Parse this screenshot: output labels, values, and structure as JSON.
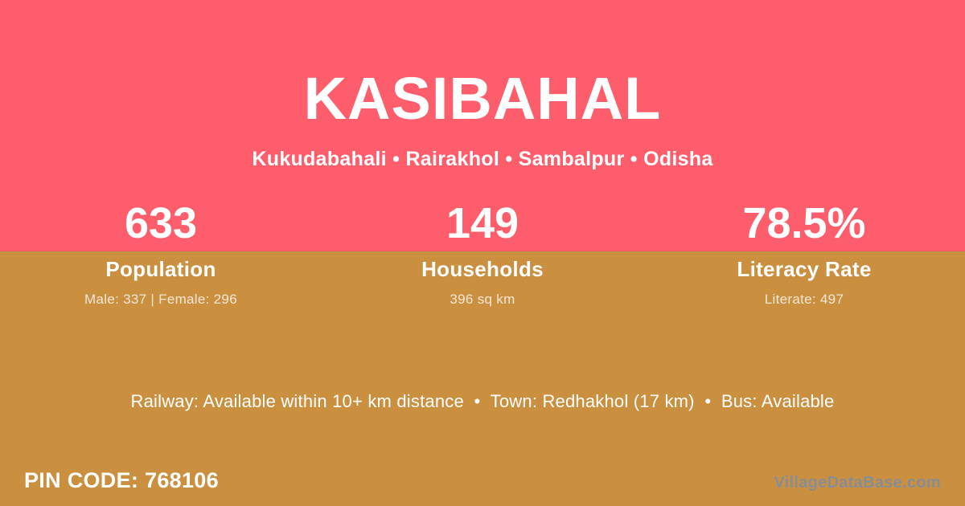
{
  "theme": {
    "pink": "#fe5e6c",
    "gold": "#ca9040",
    "text_white": "#ffffff",
    "text_muted": "rgba(255,255,255,0.78)",
    "watermark_gray": "#878d96"
  },
  "header": {
    "title": "KASIBAHAL",
    "subtitle": "Kukudabahali • Rairakhol • Sambalpur • Odisha"
  },
  "stats": [
    {
      "value": "633",
      "label": "Population",
      "detail": "Male: 337 | Female: 296"
    },
    {
      "value": "149",
      "label": "Households",
      "detail": "396 sq km"
    },
    {
      "value": "78.5%",
      "label": "Literacy Rate",
      "detail": "Literate: 497"
    }
  ],
  "transport_line": "Railway: Available within 10+ km distance  •  Town: Redhakhol (17 km)  •  Bus: Available",
  "footer": {
    "pin_code": "PIN CODE: 768106",
    "watermark": "VillageDataBase.com"
  }
}
